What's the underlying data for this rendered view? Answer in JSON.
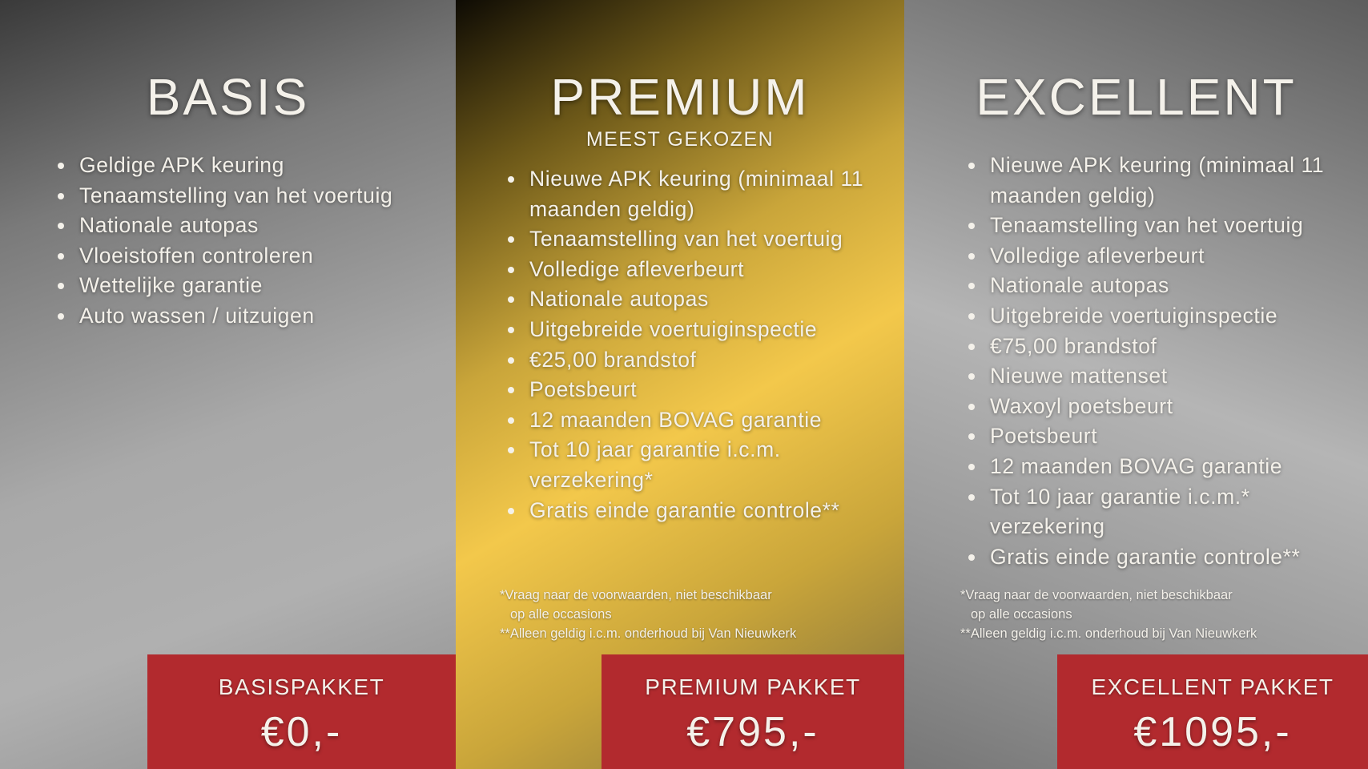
{
  "colors": {
    "red": "#b22a2e",
    "gold": "#f3c84b",
    "grey": "#a9a9a9"
  },
  "basis": {
    "title": "BASIS",
    "items": [
      "Geldige APK keuring",
      "Tenaamstelling van het voertuig",
      "Nationale autopas",
      "Vloeistoffen controleren",
      "Wettelijke garantie",
      "Auto wassen / uitzuigen"
    ],
    "package": "BASISPAKKET",
    "price": "€0,-"
  },
  "premium": {
    "title": "PREMIUM",
    "subtitle": "MEEST GEKOZEN",
    "items": [
      "Nieuwe APK keuring (minimaal 11 maanden geldig)",
      "Tenaamstelling van het voertuig",
      "Volledige afleverbeurt",
      "Nationale autopas",
      "Uitgebreide voertuiginspectie",
      "€25,00 brandstof",
      "Poetsbeurt",
      "12 maanden BOVAG garantie",
      "Tot 10 jaar garantie i.c.m. verzekering*",
      "Gratis einde garantie controle**"
    ],
    "notes": [
      "*Vraag naar de voorwaarden, niet beschikbaar",
      "op alle occasions",
      "**Alleen geldig i.c.m. onderhoud bij Van Nieuwkerk"
    ],
    "package": "PREMIUM PAKKET",
    "price": "€795,-"
  },
  "excellent": {
    "title": "EXCELLENT",
    "items": [
      "Nieuwe APK keuring (minimaal 11 maanden geldig)",
      "Tenaamstelling van het voertuig",
      "Volledige afleverbeurt",
      "Nationale autopas",
      "Uitgebreide voertuiginspectie",
      "€75,00 brandstof",
      "Nieuwe mattenset",
      "Waxoyl poetsbeurt",
      "Poetsbeurt",
      "12 maanden BOVAG garantie",
      "Tot 10 jaar garantie i.c.m.* verzekering",
      "Gratis einde garantie controle**"
    ],
    "notes": [
      "*Vraag naar de voorwaarden, niet beschikbaar",
      "op alle occasions",
      "**Alleen geldig i.c.m. onderhoud bij Van Nieuwkerk"
    ],
    "package": "EXCELLENT PAKKET",
    "price": "€1095,-"
  }
}
